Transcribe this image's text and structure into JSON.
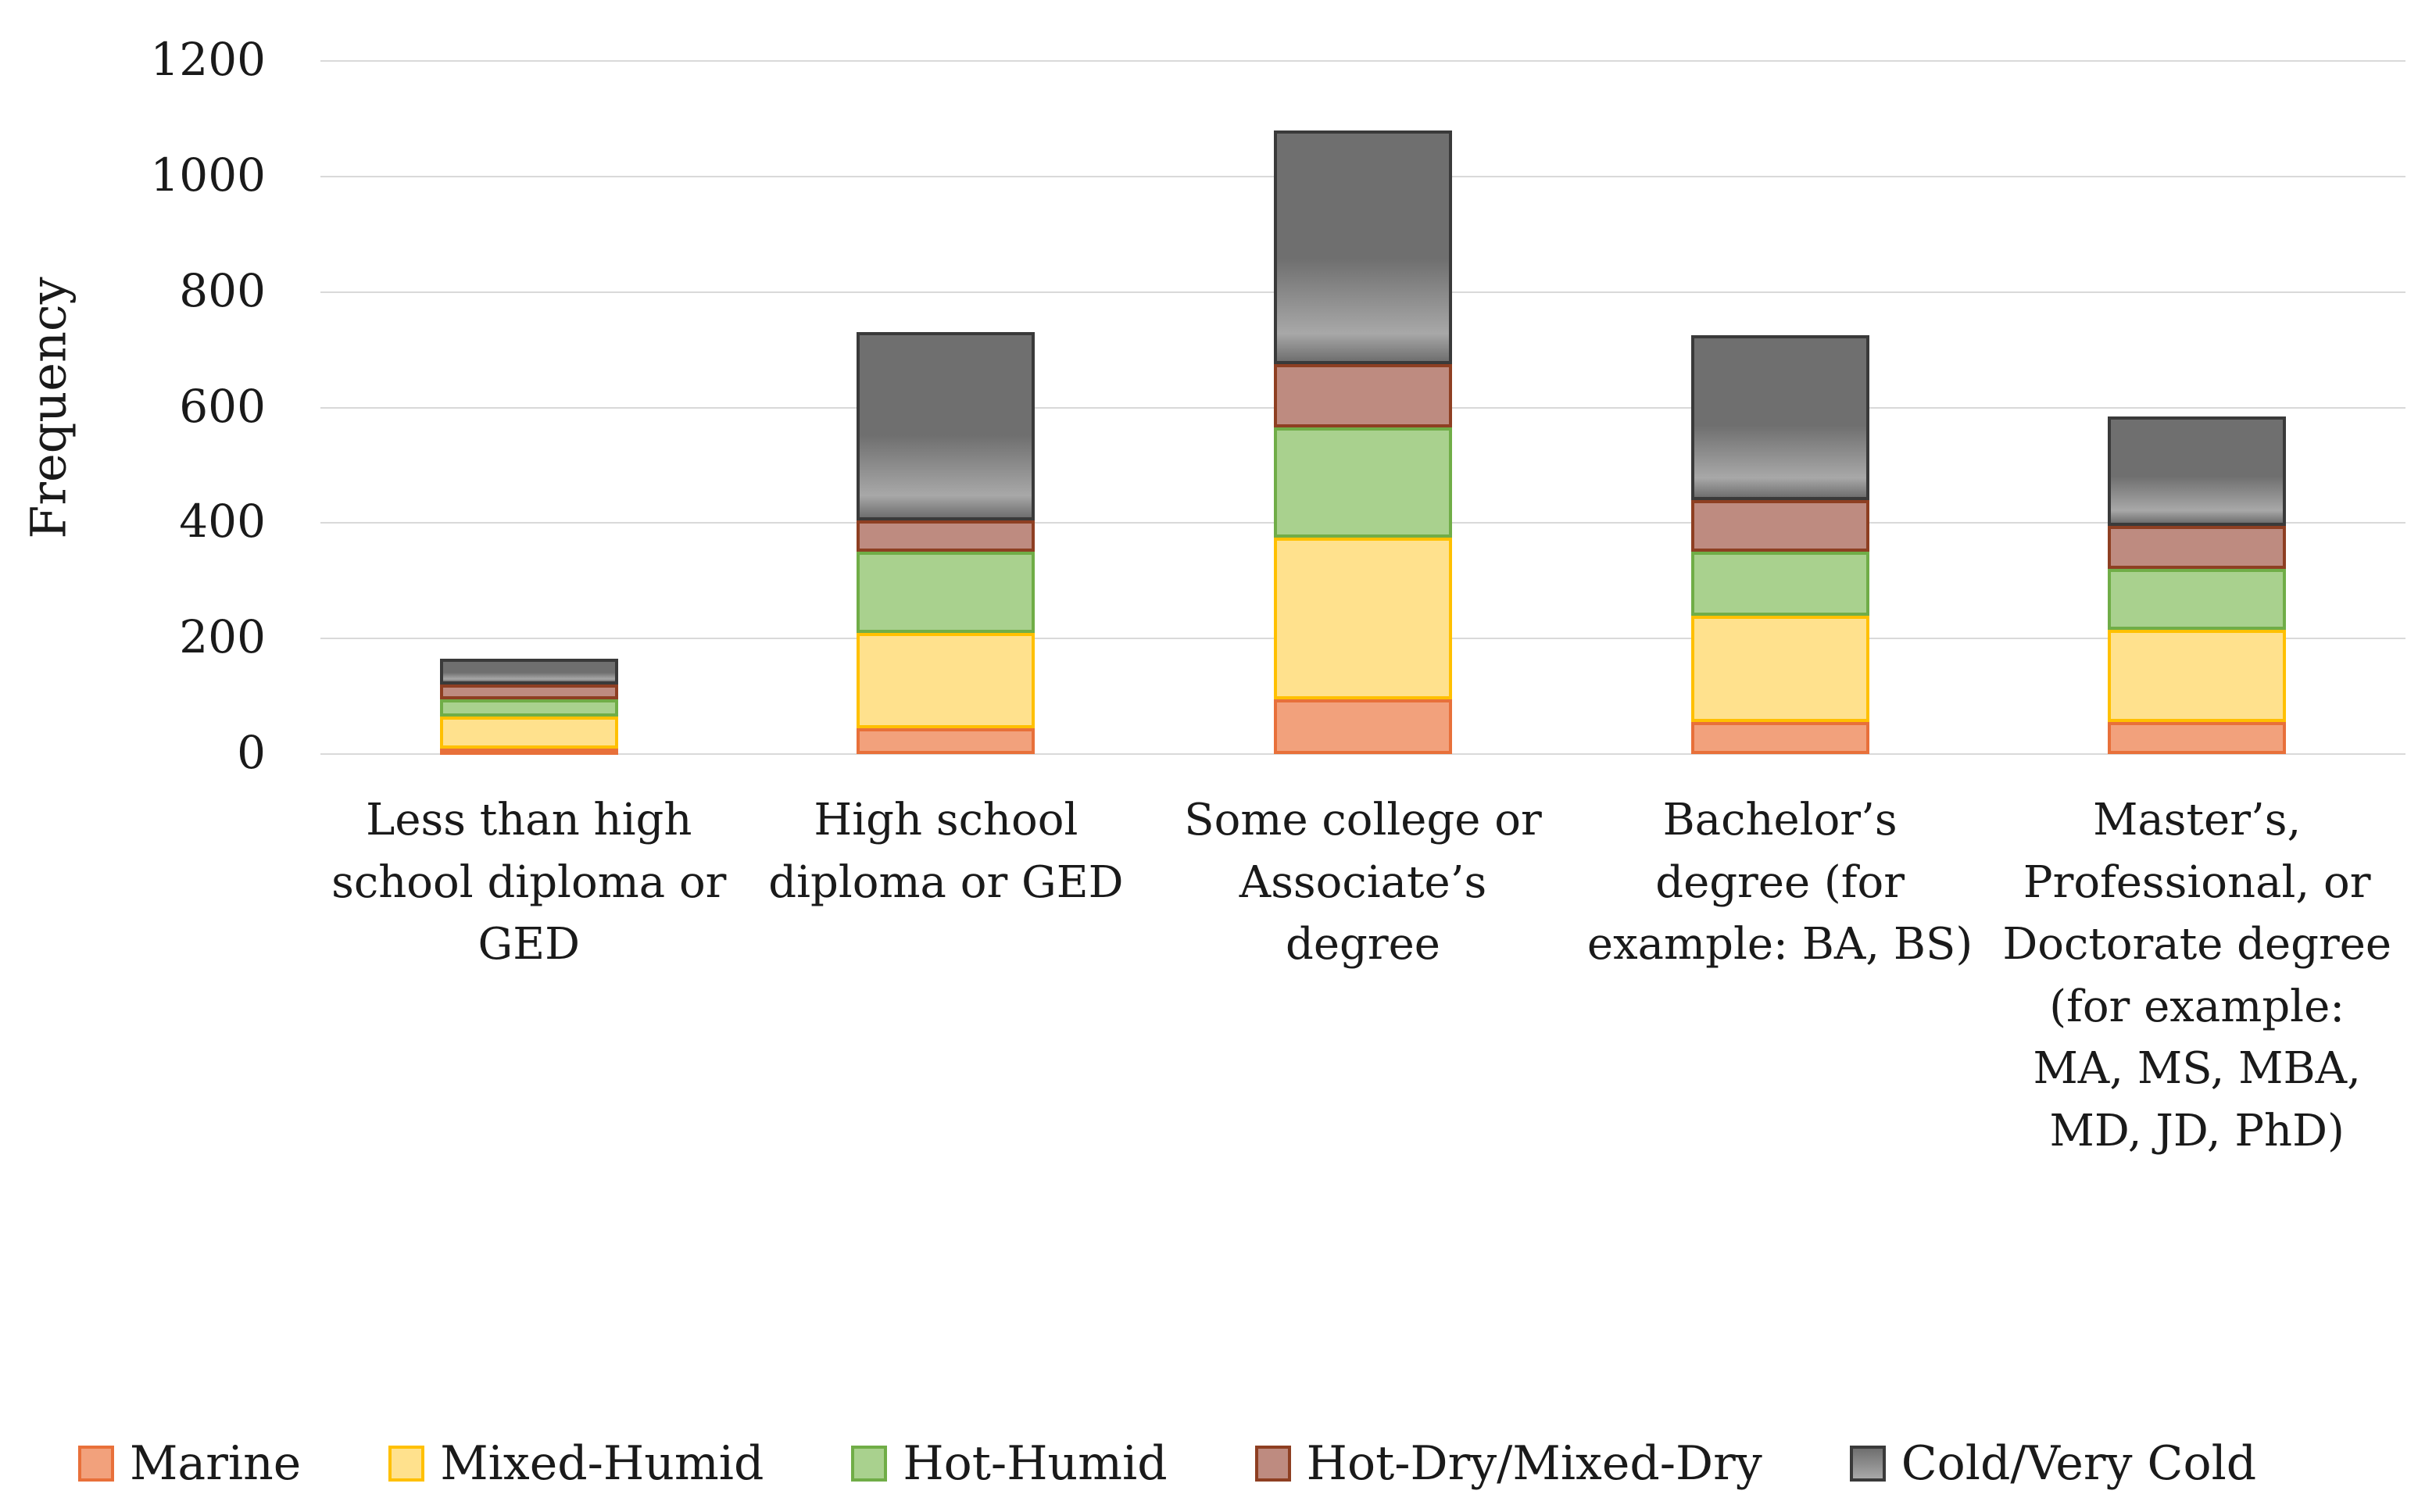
{
  "chart_data": {
    "type": "bar",
    "stacked": true,
    "title": "",
    "xlabel": "",
    "ylabel": "Frequency",
    "ylim": [
      0,
      1200
    ],
    "yticks": [
      0,
      200,
      400,
      600,
      800,
      1000,
      1200
    ],
    "grid": true,
    "legend_position": "bottom",
    "categories": [
      "Less than high school diploma or GED",
      "High school diploma or GED",
      "Some college or Associate’s degree",
      "Bachelor’s degree (for example: BA, BS)",
      "Master’s, Professional, or Doctorate degree (for example: MA, MS, MBA, MD, JD, PhD)"
    ],
    "series": [
      {
        "name": "Marine",
        "fill": "#F2A17C",
        "border": "#E8703A",
        "values": [
          10,
          45,
          95,
          55,
          55
        ]
      },
      {
        "name": "Mixed-Humid",
        "fill": "#FFE18D",
        "border": "#FFC000",
        "values": [
          55,
          165,
          280,
          185,
          160
        ]
      },
      {
        "name": "Hot-Humid",
        "fill": "#A9D18E",
        "border": "#70AD47",
        "values": [
          30,
          140,
          190,
          110,
          105
        ]
      },
      {
        "name": "Hot-Dry/Mixed-Dry",
        "fill": "#BE8B80",
        "border": "#8E3F22",
        "values": [
          25,
          55,
          110,
          90,
          75
        ]
      },
      {
        "name": "Cold/Very Cold",
        "fill": "#6F6F6F",
        "fill_light": "#A8A8A8",
        "border": "#3A3A3A",
        "values": [
          45,
          325,
          405,
          285,
          190
        ]
      }
    ],
    "totals": [
      165,
      730,
      1080,
      725,
      585
    ]
  }
}
